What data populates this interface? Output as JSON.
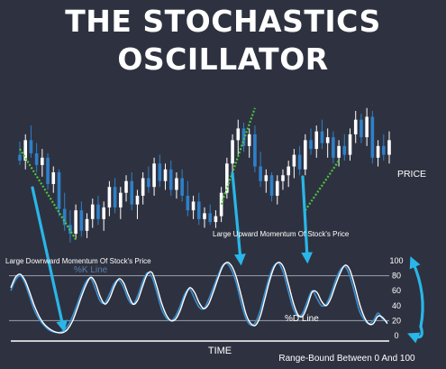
{
  "title": {
    "line1": "THE STOCHASTICS",
    "line2": "OSCILLATOR"
  },
  "colors": {
    "background": "#2e3240",
    "up_candle": "#ffffff",
    "down_candle": "#2f80c8",
    "trend_line": "#4ec83a",
    "k_line": "#3a8fd0",
    "d_line": "#ffffff",
    "arrow": "#29b6e8",
    "reference_line": "#9aa0ac"
  },
  "chart_data": [
    {
      "type": "candlestick",
      "title": "",
      "xlabel": "",
      "ylabel": "PRICE",
      "ylim": [
        0,
        100
      ],
      "candles": [
        {
          "o": 62,
          "h": 71,
          "l": 55,
          "c": 58
        },
        {
          "o": 58,
          "h": 76,
          "l": 52,
          "c": 72
        },
        {
          "o": 72,
          "h": 82,
          "l": 60,
          "c": 63
        },
        {
          "o": 63,
          "h": 70,
          "l": 50,
          "c": 55
        },
        {
          "o": 55,
          "h": 66,
          "l": 47,
          "c": 60
        },
        {
          "o": 60,
          "h": 63,
          "l": 38,
          "c": 42
        },
        {
          "o": 42,
          "h": 54,
          "l": 36,
          "c": 50
        },
        {
          "o": 50,
          "h": 52,
          "l": 20,
          "c": 25
        },
        {
          "o": 25,
          "h": 36,
          "l": 10,
          "c": 14
        },
        {
          "o": 14,
          "h": 24,
          "l": 2,
          "c": 8
        },
        {
          "o": 8,
          "h": 28,
          "l": 4,
          "c": 24
        },
        {
          "o": 24,
          "h": 30,
          "l": 6,
          "c": 10
        },
        {
          "o": 10,
          "h": 22,
          "l": 5,
          "c": 18
        },
        {
          "o": 18,
          "h": 32,
          "l": 12,
          "c": 28
        },
        {
          "o": 28,
          "h": 34,
          "l": 14,
          "c": 18
        },
        {
          "o": 18,
          "h": 30,
          "l": 10,
          "c": 26
        },
        {
          "o": 26,
          "h": 44,
          "l": 20,
          "c": 40
        },
        {
          "o": 40,
          "h": 46,
          "l": 22,
          "c": 26
        },
        {
          "o": 26,
          "h": 40,
          "l": 18,
          "c": 36
        },
        {
          "o": 36,
          "h": 48,
          "l": 30,
          "c": 44
        },
        {
          "o": 44,
          "h": 50,
          "l": 24,
          "c": 28
        },
        {
          "o": 28,
          "h": 38,
          "l": 18,
          "c": 34
        },
        {
          "o": 34,
          "h": 50,
          "l": 28,
          "c": 46
        },
        {
          "o": 46,
          "h": 54,
          "l": 36,
          "c": 40
        },
        {
          "o": 40,
          "h": 60,
          "l": 34,
          "c": 56
        },
        {
          "o": 56,
          "h": 62,
          "l": 40,
          "c": 44
        },
        {
          "o": 44,
          "h": 56,
          "l": 38,
          "c": 52
        },
        {
          "o": 52,
          "h": 58,
          "l": 34,
          "c": 38
        },
        {
          "o": 38,
          "h": 50,
          "l": 32,
          "c": 46
        },
        {
          "o": 46,
          "h": 52,
          "l": 30,
          "c": 34
        },
        {
          "o": 34,
          "h": 44,
          "l": 20,
          "c": 24
        },
        {
          "o": 24,
          "h": 34,
          "l": 18,
          "c": 30
        },
        {
          "o": 30,
          "h": 36,
          "l": 14,
          "c": 18
        },
        {
          "o": 18,
          "h": 26,
          "l": 12,
          "c": 22
        },
        {
          "o": 22,
          "h": 28,
          "l": 14,
          "c": 16
        },
        {
          "o": 16,
          "h": 24,
          "l": 12,
          "c": 20
        },
        {
          "o": 20,
          "h": 40,
          "l": 16,
          "c": 36
        },
        {
          "o": 36,
          "h": 60,
          "l": 32,
          "c": 56
        },
        {
          "o": 56,
          "h": 76,
          "l": 50,
          "c": 72
        },
        {
          "o": 72,
          "h": 86,
          "l": 62,
          "c": 80
        },
        {
          "o": 80,
          "h": 84,
          "l": 64,
          "c": 68
        },
        {
          "o": 68,
          "h": 80,
          "l": 60,
          "c": 76
        },
        {
          "o": 76,
          "h": 82,
          "l": 50,
          "c": 54
        },
        {
          "o": 54,
          "h": 64,
          "l": 40,
          "c": 44
        },
        {
          "o": 44,
          "h": 52,
          "l": 36,
          "c": 48
        },
        {
          "o": 48,
          "h": 50,
          "l": 30,
          "c": 34
        },
        {
          "o": 34,
          "h": 48,
          "l": 28,
          "c": 44
        },
        {
          "o": 44,
          "h": 52,
          "l": 38,
          "c": 48
        },
        {
          "o": 48,
          "h": 58,
          "l": 40,
          "c": 54
        },
        {
          "o": 54,
          "h": 66,
          "l": 46,
          "c": 62
        },
        {
          "o": 62,
          "h": 68,
          "l": 48,
          "c": 52
        },
        {
          "o": 52,
          "h": 76,
          "l": 48,
          "c": 72
        },
        {
          "o": 72,
          "h": 80,
          "l": 62,
          "c": 66
        },
        {
          "o": 66,
          "h": 82,
          "l": 60,
          "c": 78
        },
        {
          "o": 78,
          "h": 86,
          "l": 66,
          "c": 70
        },
        {
          "o": 70,
          "h": 80,
          "l": 60,
          "c": 74
        },
        {
          "o": 74,
          "h": 78,
          "l": 56,
          "c": 60
        },
        {
          "o": 60,
          "h": 72,
          "l": 54,
          "c": 68
        },
        {
          "o": 68,
          "h": 76,
          "l": 58,
          "c": 62
        },
        {
          "o": 62,
          "h": 80,
          "l": 58,
          "c": 76
        },
        {
          "o": 76,
          "h": 92,
          "l": 70,
          "c": 86
        },
        {
          "o": 86,
          "h": 90,
          "l": 70,
          "c": 74
        },
        {
          "o": 74,
          "h": 94,
          "l": 68,
          "c": 88
        },
        {
          "o": 88,
          "h": 92,
          "l": 56,
          "c": 60
        },
        {
          "o": 60,
          "h": 72,
          "l": 54,
          "c": 68
        },
        {
          "o": 68,
          "h": 76,
          "l": 58,
          "c": 62
        },
        {
          "o": 62,
          "h": 78,
          "l": 56,
          "c": 72
        }
      ],
      "trendlines": [
        {
          "from": [
            0,
            66
          ],
          "to": [
            10,
            4
          ]
        },
        {
          "from": [
            36,
            28
          ],
          "to": [
            42,
            94
          ]
        },
        {
          "from": [
            51,
            24
          ],
          "to": [
            57,
            58
          ]
        },
        {
          "from": [
            63,
            96
          ],
          "to": [
            63,
            96
          ]
        }
      ],
      "annotations": [
        {
          "text": "Large Downward Momentum Of  Stock's Price"
        },
        {
          "text": "Large Upward Momentum Of  Stock's Price"
        }
      ]
    },
    {
      "type": "line",
      "title": "",
      "xlabel": "TIME",
      "ylabel": "",
      "ylim": [
        0,
        100
      ],
      "yticks": [
        0,
        20,
        40,
        60,
        80,
        100
      ],
      "reference_lines": [
        20,
        80
      ],
      "x": [
        0,
        1,
        2,
        3,
        4,
        5,
        6,
        7,
        8,
        9,
        10,
        11,
        12,
        13,
        14,
        15,
        16,
        17,
        18,
        19,
        20,
        21,
        22,
        23,
        24,
        25,
        26,
        27,
        28,
        29,
        30,
        31,
        32,
        33,
        34,
        35,
        36,
        37,
        38,
        39,
        40,
        41,
        42,
        43,
        44,
        45,
        46,
        47,
        48,
        49,
        50,
        51,
        52,
        53,
        54,
        55,
        56,
        57,
        58,
        59,
        60,
        61,
        62,
        63,
        64,
        65,
        66,
        67,
        68,
        69,
        70,
        71,
        72,
        73,
        74,
        75,
        76,
        77,
        78,
        79,
        80
      ],
      "series": [
        {
          "name": "%K Line",
          "values": [
            60,
            74,
            80,
            70,
            52,
            34,
            22,
            14,
            8,
            5,
            4,
            6,
            12,
            24,
            40,
            58,
            72,
            76,
            62,
            46,
            44,
            56,
            70,
            74,
            64,
            48,
            42,
            54,
            72,
            84,
            78,
            58,
            36,
            24,
            20,
            26,
            40,
            56,
            62,
            50,
            38,
            36,
            48,
            64,
            80,
            94,
            96,
            86,
            68,
            42,
            22,
            14,
            18,
            34,
            58,
            80,
            94,
            96,
            82,
            58,
            36,
            26,
            30,
            46,
            60,
            50,
            40,
            42,
            56,
            74,
            88,
            92,
            80,
            58,
            34,
            22,
            16,
            20,
            30,
            22,
            18
          ]
        },
        {
          "name": "%D Line",
          "values": [
            64,
            78,
            82,
            74,
            58,
            40,
            26,
            16,
            10,
            6,
            4,
            4,
            8,
            18,
            34,
            52,
            68,
            78,
            70,
            52,
            42,
            50,
            66,
            76,
            70,
            54,
            42,
            48,
            66,
            82,
            84,
            66,
            44,
            28,
            20,
            22,
            34,
            52,
            64,
            58,
            44,
            36,
            42,
            58,
            76,
            92,
            98,
            92,
            76,
            52,
            28,
            16,
            14,
            26,
            50,
            74,
            92,
            98,
            90,
            68,
            44,
            28,
            26,
            40,
            58,
            58,
            46,
            40,
            50,
            68,
            84,
            94,
            88,
            68,
            44,
            26,
            16,
            16,
            26,
            24,
            16
          ]
        }
      ],
      "legend_labels": [
        {
          "text": "%K Line"
        },
        {
          "text": "%D Line"
        }
      ],
      "annotations": [
        {
          "text": "Range-Bound Between 0 And 100"
        }
      ]
    }
  ]
}
